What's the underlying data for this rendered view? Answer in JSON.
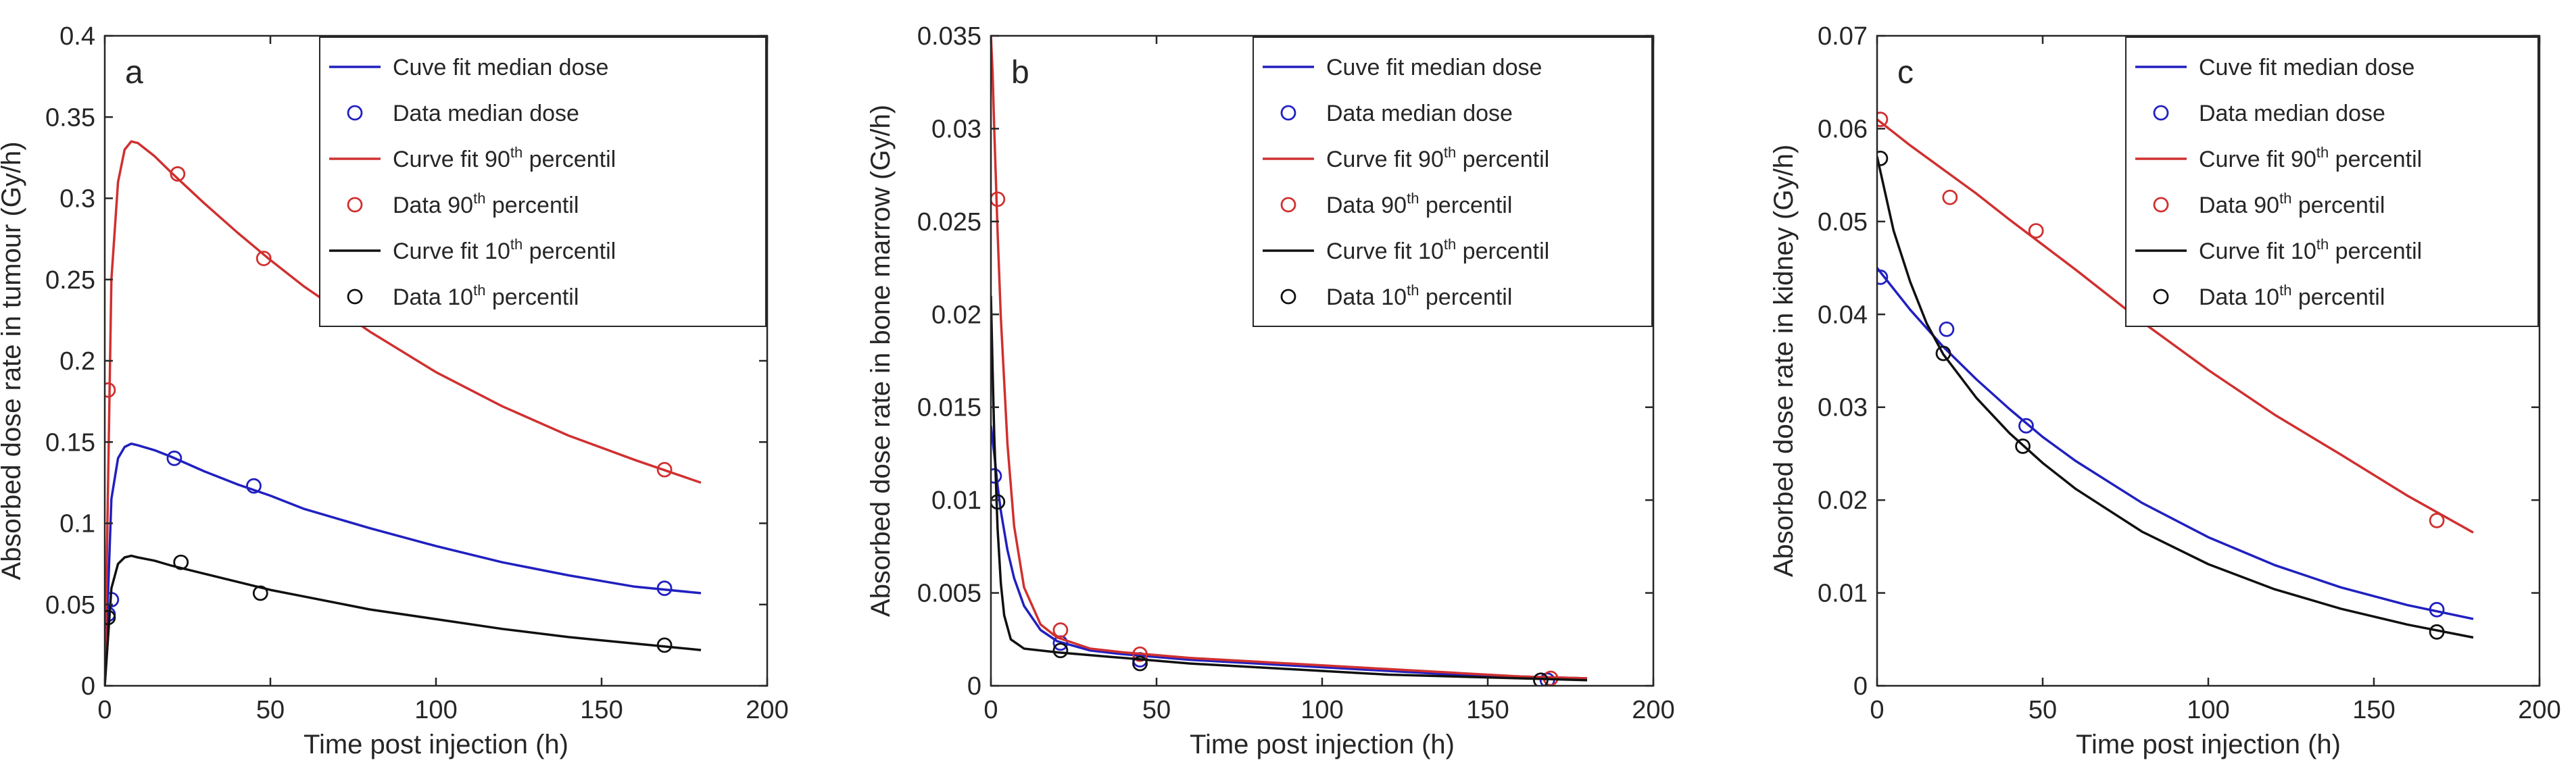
{
  "colors": {
    "median": "#2020c0",
    "p90": "#d03030",
    "p10": "#101010",
    "axis": "#262626"
  },
  "chart_data": [
    {
      "type": "line",
      "panel_label": "a",
      "xlabel": "Time post injection (h)",
      "ylabel": "Absorbed dose rate in tumour (Gy/h)",
      "xlim": [
        0,
        200
      ],
      "ylim": [
        0,
        0.4
      ],
      "x_ticks": [
        0,
        50,
        100,
        150,
        200
      ],
      "y_ticks": [
        0,
        0.05,
        0.1,
        0.15,
        0.2,
        0.25,
        0.3,
        0.35,
        0.4
      ],
      "y_tick_labels": [
        "0",
        "0.05",
        "0.1",
        "0.15",
        "0.2",
        "0.25",
        "0.3",
        "0.35",
        "0.4"
      ],
      "legend_placement": "top-right",
      "series": [
        {
          "name": "Cuve fit median dose",
          "kind": "line",
          "color_key": "median",
          "x": [
            0,
            2,
            4,
            6,
            8,
            10,
            15,
            20,
            30,
            40,
            50,
            60,
            80,
            100,
            120,
            140,
            160,
            180
          ],
          "y": [
            0,
            0.115,
            0.14,
            0.147,
            0.149,
            0.148,
            0.145,
            0.141,
            0.132,
            0.124,
            0.117,
            0.109,
            0.097,
            0.086,
            0.076,
            0.068,
            0.061,
            0.057
          ]
        },
        {
          "name": "Data median dose",
          "kind": "points",
          "color_key": "median",
          "x": [
            1,
            2,
            21,
            45,
            169
          ],
          "y": [
            0.044,
            0.053,
            0.14,
            0.123,
            0.06
          ]
        },
        {
          "name": "Curve fit 90",
          "name_sup": "th",
          "name_rest": " percentil",
          "kind": "line",
          "color_key": "p90",
          "x": [
            0,
            2,
            4,
            6,
            8,
            10,
            15,
            20,
            30,
            40,
            50,
            60,
            80,
            100,
            120,
            140,
            160,
            180
          ],
          "y": [
            0,
            0.25,
            0.31,
            0.33,
            0.335,
            0.334,
            0.326,
            0.316,
            0.297,
            0.279,
            0.262,
            0.246,
            0.218,
            0.193,
            0.172,
            0.154,
            0.139,
            0.125
          ]
        },
        {
          "name": "Data 90",
          "name_sup": "th",
          "name_rest": " percentil",
          "kind": "points",
          "color_key": "p90",
          "x": [
            1,
            22,
            48,
            169
          ],
          "y": [
            0.182,
            0.315,
            0.263,
            0.133
          ]
        },
        {
          "name": "Curve fit 10",
          "name_sup": "th",
          "name_rest": " percentil",
          "kind": "line",
          "color_key": "p10",
          "x": [
            0,
            2,
            4,
            6,
            8,
            10,
            15,
            20,
            30,
            40,
            50,
            60,
            80,
            100,
            120,
            140,
            160,
            180
          ],
          "y": [
            0,
            0.06,
            0.075,
            0.079,
            0.08,
            0.079,
            0.077,
            0.074,
            0.069,
            0.064,
            0.059,
            0.055,
            0.047,
            0.041,
            0.035,
            0.03,
            0.026,
            0.022
          ]
        },
        {
          "name": "Data 10",
          "name_sup": "th",
          "name_rest": " percentil",
          "kind": "points",
          "color_key": "p10",
          "x": [
            1,
            23,
            47,
            169
          ],
          "y": [
            0.042,
            0.076,
            0.057,
            0.025
          ]
        }
      ]
    },
    {
      "type": "line",
      "panel_label": "b",
      "xlabel": "Time post injection (h)",
      "ylabel": "Absorbed dose rate in bone marrow (Gy/h)",
      "xlim": [
        0,
        200
      ],
      "ylim": [
        0,
        0.035
      ],
      "x_ticks": [
        0,
        50,
        100,
        150,
        200
      ],
      "y_ticks": [
        0,
        0.005,
        0.01,
        0.015,
        0.02,
        0.025,
        0.03,
        0.035
      ],
      "y_tick_labels": [
        "0",
        "0.005",
        "0.01",
        "0.015",
        "0.02",
        "0.025",
        "0.03",
        "0.035"
      ],
      "legend_placement": "top-right",
      "series": [
        {
          "name": "Cuve fit median dose",
          "kind": "line",
          "color_key": "median",
          "x": [
            0,
            1,
            2,
            3,
            5,
            7,
            10,
            15,
            20,
            30,
            40,
            60,
            80,
            100,
            120,
            140,
            160,
            180
          ],
          "y": [
            0.014,
            0.0125,
            0.0108,
            0.0094,
            0.0073,
            0.0058,
            0.0043,
            0.003,
            0.0024,
            0.0019,
            0.0017,
            0.0014,
            0.0012,
            0.001,
            0.0008,
            0.0006,
            0.0005,
            0.0004
          ]
        },
        {
          "name": "Data median dose",
          "kind": "points",
          "color_key": "median",
          "x": [
            1,
            21,
            45,
            168
          ],
          "y": [
            0.0113,
            0.0023,
            0.0014,
            0.0003
          ]
        },
        {
          "name": "Curve fit 90",
          "name_sup": "th",
          "name_rest": " percentil",
          "kind": "line",
          "color_key": "p90",
          "x": [
            0,
            0.5,
            1,
            2,
            3,
            5,
            7,
            10,
            15,
            20,
            30,
            40,
            60,
            80,
            100,
            120,
            140,
            160,
            180
          ],
          "y": [
            0.035,
            0.033,
            0.03,
            0.0245,
            0.0198,
            0.013,
            0.0086,
            0.0053,
            0.0033,
            0.0026,
            0.002,
            0.0018,
            0.0015,
            0.0013,
            0.0011,
            0.0009,
            0.0007,
            0.0005,
            0.0004
          ]
        },
        {
          "name": "Data 90",
          "name_sup": "th",
          "name_rest": " percentil",
          "kind": "points",
          "color_key": "p90",
          "x": [
            2,
            21,
            45,
            169
          ],
          "y": [
            0.0262,
            0.003,
            0.0017,
            0.0004
          ]
        },
        {
          "name": "Curve fit 10",
          "name_sup": "th",
          "name_rest": " percentil",
          "kind": "line",
          "color_key": "p10",
          "x": [
            0,
            0.5,
            1,
            2,
            3,
            4,
            6,
            10,
            20,
            40,
            60,
            80,
            100,
            120,
            140,
            160,
            180
          ],
          "y": [
            0.021,
            0.017,
            0.0135,
            0.0085,
            0.0055,
            0.0038,
            0.0025,
            0.002,
            0.0018,
            0.0015,
            0.0012,
            0.001,
            0.0008,
            0.0006,
            0.0005,
            0.0004,
            0.0003
          ]
        },
        {
          "name": "Data 10",
          "name_sup": "th",
          "name_rest": " percentil",
          "kind": "points",
          "color_key": "p10",
          "x": [
            2,
            21,
            45,
            166
          ],
          "y": [
            0.0099,
            0.0019,
            0.0012,
            0.0003
          ]
        }
      ]
    },
    {
      "type": "line",
      "panel_label": "c",
      "xlabel": "Time post injection (h)",
      "ylabel": "Absorbed dose rate in kidney (Gy/h)",
      "xlim": [
        0,
        200
      ],
      "ylim": [
        0,
        0.07
      ],
      "x_ticks": [
        0,
        50,
        100,
        150,
        200
      ],
      "y_ticks": [
        0,
        0.01,
        0.02,
        0.03,
        0.04,
        0.05,
        0.06,
        0.07
      ],
      "y_tick_labels": [
        "0",
        "0.01",
        "0.02",
        "0.03",
        "0.04",
        "0.05",
        "0.06",
        "0.07"
      ],
      "legend_placement": "top-right",
      "series": [
        {
          "name": "Cuve fit median dose",
          "kind": "line",
          "color_key": "median",
          "x": [
            0,
            10,
            20,
            30,
            40,
            50,
            60,
            80,
            100,
            120,
            140,
            160,
            180
          ],
          "y": [
            0.045,
            0.0405,
            0.0365,
            0.033,
            0.0298,
            0.0268,
            0.0242,
            0.0197,
            0.016,
            0.013,
            0.0106,
            0.0087,
            0.0072
          ]
        },
        {
          "name": "Data median dose",
          "kind": "points",
          "color_key": "median",
          "x": [
            1,
            21,
            45,
            169
          ],
          "y": [
            0.044,
            0.0384,
            0.028,
            0.0082
          ]
        },
        {
          "name": "Curve fit 90",
          "name_sup": "th",
          "name_rest": " percentil",
          "kind": "line",
          "color_key": "p90",
          "x": [
            0,
            10,
            20,
            30,
            40,
            50,
            60,
            80,
            100,
            120,
            140,
            160,
            180
          ],
          "y": [
            0.061,
            0.0582,
            0.0556,
            0.053,
            0.0502,
            0.0475,
            0.0448,
            0.0392,
            0.034,
            0.0292,
            0.0249,
            0.0205,
            0.0165
          ]
        },
        {
          "name": "Data 90",
          "name_sup": "th",
          "name_rest": " percentil",
          "kind": "points",
          "color_key": "p90",
          "x": [
            1,
            22,
            48,
            169
          ],
          "y": [
            0.061,
            0.0526,
            0.049,
            0.0178
          ]
        },
        {
          "name": "Curve fit 10",
          "name_sup": "th",
          "name_rest": " percentil",
          "kind": "line",
          "color_key": "p10",
          "x": [
            0,
            5,
            10,
            15,
            20,
            30,
            40,
            50,
            60,
            80,
            100,
            120,
            140,
            160,
            180
          ],
          "y": [
            0.057,
            0.049,
            0.0435,
            0.039,
            0.0357,
            0.031,
            0.0272,
            0.024,
            0.0212,
            0.0166,
            0.0131,
            0.0104,
            0.0083,
            0.0066,
            0.0052
          ]
        },
        {
          "name": "Data 10",
          "name_sup": "th",
          "name_rest": " percentil",
          "kind": "points",
          "color_key": "p10",
          "x": [
            1,
            20,
            44,
            169
          ],
          "y": [
            0.0568,
            0.0358,
            0.0258,
            0.0058
          ]
        }
      ]
    }
  ]
}
